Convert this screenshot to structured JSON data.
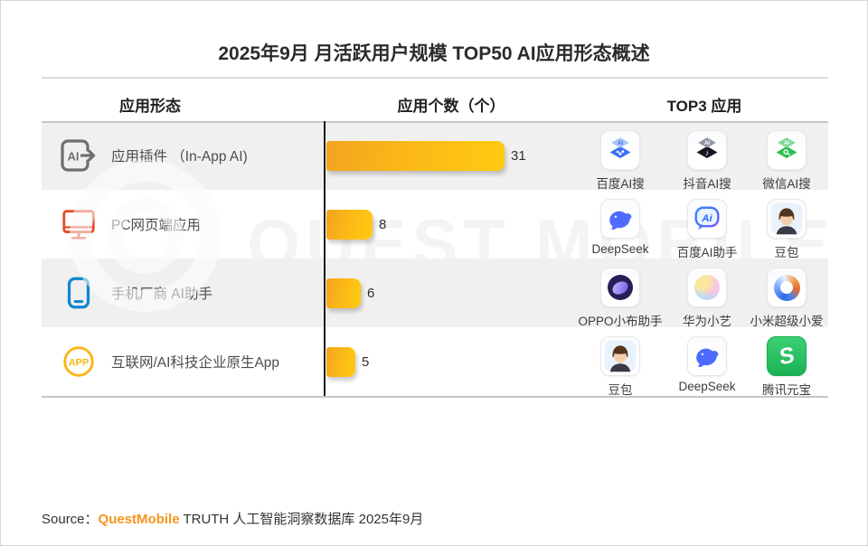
{
  "header": {
    "title": "2025年9月 月活跃用户规模 TOP50 AI应用形态概述"
  },
  "columns": {
    "form": "应用形态",
    "count": "应用个数（个）",
    "top3": "TOP3 应用"
  },
  "rows": [
    {
      "label": "应用插件 （In-App AI)",
      "icon": "in-app-ai-icon",
      "count": "31",
      "apps": [
        {
          "name": "百度AI搜",
          "icon": "baidu-ai-search-logo"
        },
        {
          "name": "抖音AI搜",
          "icon": "douyin-ai-search-logo"
        },
        {
          "name": "微信AI搜",
          "icon": "wechat-ai-search-logo"
        }
      ]
    },
    {
      "label": "PC网页端应用",
      "icon": "pc-monitor-icon",
      "count": "8",
      "apps": [
        {
          "name": "DeepSeek",
          "icon": "deepseek-whale-logo"
        },
        {
          "name": "百度AI助手",
          "icon": "baidu-ai-assistant-logo"
        },
        {
          "name": "豆包",
          "icon": "doubao-avatar-logo"
        }
      ]
    },
    {
      "label": "手机厂商 AI助手",
      "icon": "smartphone-icon",
      "count": "6",
      "apps": [
        {
          "name": "OPPO小布助手",
          "icon": "oppo-xiaobu-logo"
        },
        {
          "name": "华为小艺",
          "icon": "huawei-xiaoyi-logo"
        },
        {
          "name": "小米超级小爱",
          "icon": "xiaomi-xiaoai-logo"
        }
      ]
    },
    {
      "label": "互联网/AI科技企业原生App",
      "icon": "app-circle-icon",
      "count": "5",
      "apps": [
        {
          "name": "豆包",
          "icon": "doubao-avatar-logo"
        },
        {
          "name": "DeepSeek",
          "icon": "deepseek-whale-logo"
        },
        {
          "name": "腾讯元宝",
          "icon": "tencent-yuanbao-logo"
        }
      ]
    }
  ],
  "chart_data": {
    "type": "bar",
    "orientation": "horizontal",
    "title": "2025年9月 月活跃用户规模 TOP50 AI应用形态概述",
    "categories": [
      "应用插件 （In-App AI)",
      "PC网页端应用",
      "手机厂商 AI助手",
      "互联网/AI科技企业原生App"
    ],
    "values": [
      31,
      8,
      6,
      5
    ],
    "value_axis_label": "应用个数（个）",
    "xlim": [
      0,
      35
    ],
    "grid": false,
    "bar_gradient": [
      "#F2A41E",
      "#FFCB10"
    ],
    "top3_apps": [
      [
        "百度AI搜",
        "抖音AI搜",
        "微信AI搜"
      ],
      [
        "DeepSeek",
        "百度AI助手",
        "豆包"
      ],
      [
        "OPPO小布助手",
        "华为小艺",
        "小米超级小爱"
      ],
      [
        "豆包",
        "DeepSeek",
        "腾讯元宝"
      ]
    ]
  },
  "watermark": {
    "text": "QUEST MOBILE"
  },
  "source": {
    "prefix": "Source：",
    "brand": "QuestMobile",
    "rest": " TRUTH 人工智能洞察数据库 2025年9月"
  },
  "colors": {
    "bar_start": "#F2A41E",
    "bar_end": "#FFCB10",
    "axis": "#1C1C1C",
    "row_alt_bg": "#F0F0F0",
    "accent_orange": "#F7941D",
    "icon_gray": "#6F6F6F",
    "icon_red": "#E64B2C",
    "icon_blue": "#1287CE",
    "icon_yellow": "#FBB415"
  }
}
